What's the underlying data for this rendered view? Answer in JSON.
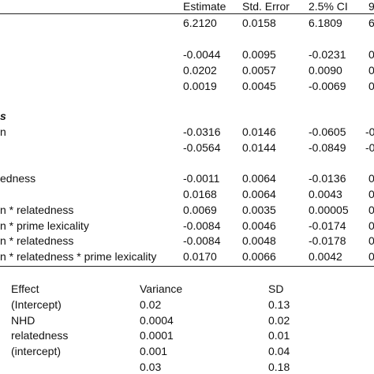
{
  "fixed_effects": {
    "headers": {
      "estimate": "Estimate",
      "std_error": "Std. Error",
      "ci_low": "2.5% CI",
      "ci_high": "9"
    },
    "section_label": "s",
    "rows": [
      {
        "term": "",
        "estimate": "6.2120",
        "std_error": "0.0158",
        "ci_low": "6.1809",
        "ci_high": "6"
      },
      {
        "term": "",
        "estimate": "-0.0044",
        "std_error": "0.0095",
        "ci_low": "-0.0231",
        "ci_high": "0"
      },
      {
        "term": "",
        "estimate": "0.0202",
        "std_error": "0.0057",
        "ci_low": "0.0090",
        "ci_high": "0"
      },
      {
        "term": "",
        "estimate": "0.0019",
        "std_error": "0.0045",
        "ci_low": "-0.0069",
        "ci_high": "0"
      },
      {
        "term": "n",
        "estimate": "-0.0316",
        "std_error": "0.0146",
        "ci_low": "-0.0605",
        "ci_high": "-0"
      },
      {
        "term": "",
        "estimate": "-0.0564",
        "std_error": "0.0144",
        "ci_low": "-0.0849",
        "ci_high": "-0"
      },
      {
        "term": "edness",
        "estimate": "-0.0011",
        "std_error": "0.0064",
        "ci_low": "-0.0136",
        "ci_high": "0"
      },
      {
        "term": "",
        "estimate": "0.0168",
        "std_error": "0.0064",
        "ci_low": "0.0043",
        "ci_high": "0"
      },
      {
        "term": "n * relatedness",
        "estimate": "0.0069",
        "std_error": "0.0035",
        "ci_low": "0.00005",
        "ci_high": "0"
      },
      {
        "term": "n * prime lexicality",
        "estimate": "-0.0084",
        "std_error": "0.0046",
        "ci_low": "-0.0174",
        "ci_high": "0"
      },
      {
        "term": "n * relatedness",
        "estimate": "-0.0084",
        "std_error": "0.0048",
        "ci_low": "-0.0178",
        "ci_high": "0"
      },
      {
        "term": "n * relatedness * prime lexicality",
        "estimate": "0.0170",
        "std_error": "0.0066",
        "ci_low": "0.0042",
        "ci_high": "0"
      }
    ]
  },
  "random_effects": {
    "headers": {
      "effect": "Effect",
      "variance": "Variance",
      "sd": "SD"
    },
    "rows": [
      {
        "effect": "(Intercept)",
        "variance": "0.02",
        "sd": "0.13"
      },
      {
        "effect": "NHD",
        "variance": "0.0004",
        "sd": "0.02"
      },
      {
        "effect": "relatedness",
        "variance": "0.0001",
        "sd": "0.01"
      },
      {
        "effect": "(intercept)",
        "variance": "0.001",
        "sd": "0.04"
      },
      {
        "effect": "",
        "variance": "0.03",
        "sd": "0.18"
      }
    ]
  }
}
